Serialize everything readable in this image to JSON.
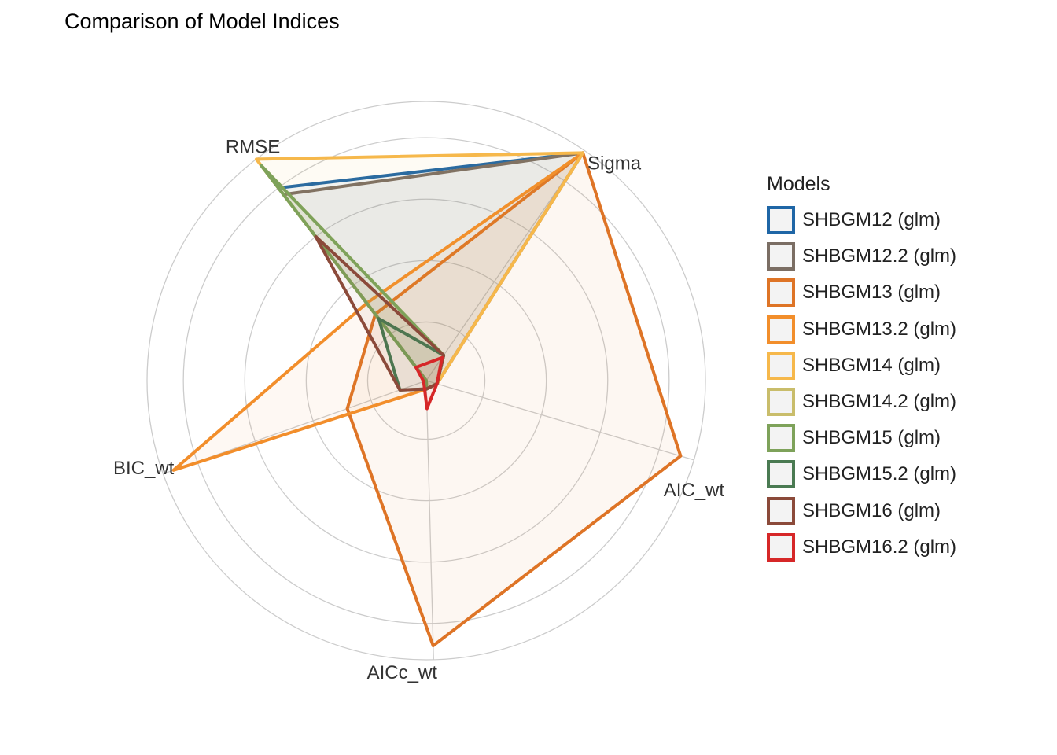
{
  "title": "Comparison of Model Indices",
  "chart_data": {
    "type": "radar",
    "title": "Comparison of Model Indices",
    "axes": [
      "RMSE",
      "Sigma",
      "AIC_wt",
      "AICc_wt",
      "BIC_wt"
    ],
    "range": [
      0,
      1
    ],
    "grid": true,
    "legend": {
      "title": "Models",
      "position": "right"
    },
    "series": [
      {
        "name": "SHBGM12 (glm)",
        "color": "#1f66a6",
        "values": [
          0.87,
          0.99,
          0.04,
          0.03,
          0.0
        ]
      },
      {
        "name": "SHBGM12.2 (glm)",
        "color": "#7b6e64",
        "values": [
          0.84,
          0.99,
          0.04,
          0.03,
          0.0
        ]
      },
      {
        "name": "SHBGM13 (glm)",
        "color": "#de7426",
        "values": [
          0.3,
          0.99,
          0.95,
          0.95,
          0.3
        ]
      },
      {
        "name": "SHBGM13.2 (glm)",
        "color": "#f28e2b",
        "values": [
          0.35,
          0.99,
          0.04,
          0.03,
          0.96
        ]
      },
      {
        "name": "SHBGM14 (glm)",
        "color": "#f6b84b",
        "values": [
          1.0,
          0.99,
          0.04,
          0.03,
          0.0
        ]
      },
      {
        "name": "SHBGM14.2 (glm)",
        "color": "#c9bd6b",
        "values": [
          0.97,
          0.11,
          0.04,
          0.03,
          0.0
        ]
      },
      {
        "name": "SHBGM15 (glm)",
        "color": "#7ea25a",
        "values": [
          0.97,
          0.11,
          0.04,
          0.03,
          0.0
        ]
      },
      {
        "name": "SHBGM15.2 (glm)",
        "color": "#4a7a52",
        "values": [
          0.28,
          0.11,
          0.04,
          0.03,
          0.1
        ]
      },
      {
        "name": "SHBGM16 (glm)",
        "color": "#8b4a3a",
        "values": [
          0.65,
          0.11,
          0.04,
          0.03,
          0.1
        ]
      },
      {
        "name": "SHBGM16.2 (glm)",
        "color": "#d62728",
        "values": [
          0.06,
          0.1,
          0.04,
          0.1,
          0.01
        ]
      }
    ]
  }
}
